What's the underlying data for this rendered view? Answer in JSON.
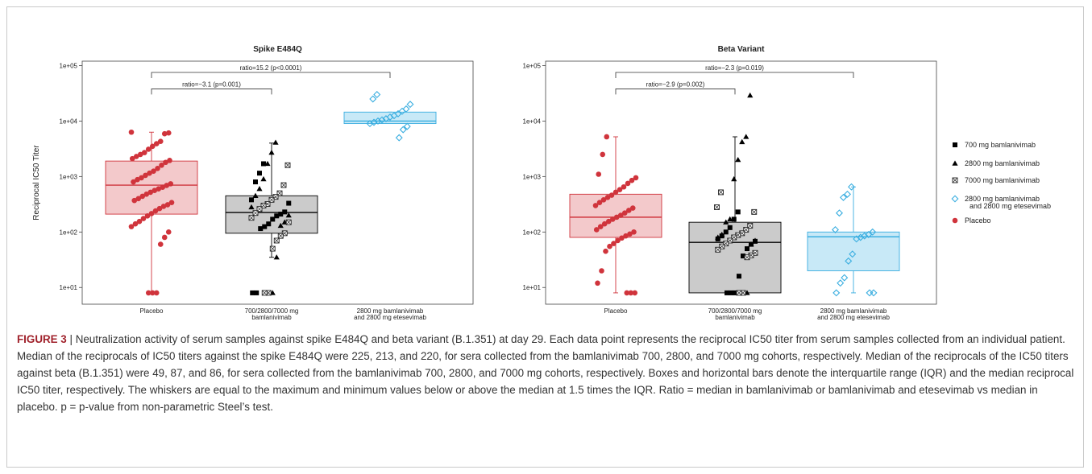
{
  "colors": {
    "placebo": "#d0343c",
    "placebo_fill": "#f3c9cb",
    "bam": "#000000",
    "bam_fill": "#cbcbcb",
    "combo": "#3aaee0",
    "combo_fill": "#c8e9f7",
    "caption_label": "#a0212b"
  },
  "chart_data": [
    {
      "type": "box",
      "title": "Spike E484Q",
      "xlabel": "",
      "ylabel": "Reciprocal IC50 Titer",
      "yscale": "log",
      "ylim": [
        5,
        120000
      ],
      "yticks": [
        "1e+01",
        "1e+02",
        "1e+03",
        "1e+04",
        "1e+05"
      ],
      "categories": [
        "Placebo",
        "700/2800/7000 mg bamlanivimab",
        "2800 mg bamlanivimab and 2800 mg etesevimab"
      ],
      "category_lines": [
        [
          "Placebo"
        ],
        [
          "700/2800/7000 mg",
          "bamlanivimab"
        ],
        [
          "2800 mg bamlanivimab",
          "and 2800 mg etesevimab"
        ]
      ],
      "boxes": [
        {
          "q1": 210,
          "median": 700,
          "q3": 1900,
          "whisker_low": 8,
          "whisker_high": 6300
        },
        {
          "q1": 95,
          "median": 225,
          "q3": 450,
          "whisker_low": 35,
          "whisker_high": 4000
        },
        {
          "q1": 9000,
          "median": 10000,
          "q3": 14500,
          "whisker_low": 9000,
          "whisker_high": 14500
        }
      ],
      "comparisons": [
        {
          "label": "ratio=−3.1 (p=0.001)",
          "from": 0,
          "to": 1,
          "y": 38000
        },
        {
          "label": "ratio=15.2 (p<0.0001)",
          "from": 0,
          "to": 2,
          "y": 160000
        }
      ],
      "points": [
        {
          "group": 0,
          "marker": "placebo",
          "values": [
            6300,
            6100,
            5900,
            4300,
            3900,
            3500,
            3100,
            2700,
            2500,
            2300,
            2100,
            1950,
            1800,
            1600,
            1400,
            1250,
            1150,
            1050,
            950,
            880,
            800,
            740,
            690,
            640,
            600,
            560,
            520,
            480,
            440,
            400,
            370,
            340,
            310,
            290,
            265,
            240,
            215,
            195,
            175,
            155,
            140,
            125,
            100,
            80,
            60,
            8,
            8,
            8
          ]
        },
        {
          "group": 1,
          "marker": "bam700",
          "values": [
            1700,
            1150,
            800,
            380,
            330,
            230,
            210,
            195,
            170,
            140,
            125,
            115,
            8,
            8
          ]
        },
        {
          "group": 1,
          "marker": "bam2800",
          "values": [
            4100,
            2700,
            1700,
            900,
            600,
            450,
            280,
            200,
            150,
            130,
            35,
            8
          ]
        },
        {
          "group": 1,
          "marker": "bam7000",
          "values": [
            1600,
            700,
            500,
            430,
            380,
            320,
            300,
            260,
            220,
            180,
            150,
            95,
            85,
            70,
            50,
            8,
            8
          ]
        },
        {
          "group": 2,
          "marker": "combo",
          "values": [
            30000,
            25000,
            20000,
            16500,
            15000,
            13500,
            12500,
            11800,
            11000,
            10500,
            10000,
            9500,
            9000,
            8000,
            7000,
            5000
          ]
        }
      ]
    },
    {
      "type": "box",
      "title": "Beta Variant",
      "xlabel": "",
      "ylabel": "",
      "yscale": "log",
      "ylim": [
        5,
        120000
      ],
      "yticks": [
        "1e+01",
        "1e+02",
        "1e+03",
        "1e+04",
        "1e+05"
      ],
      "categories": [
        "Placebo",
        "700/2800/7000 mg bamlanivimab",
        "2800 mg bamlanivimab and 2800 mg etesevimab"
      ],
      "category_lines": [
        [
          "Placebo"
        ],
        [
          "700/2800/7000 mg",
          "bamlanivimab"
        ],
        [
          "2800 mg bamlanivimab",
          "and 2800 mg etesevimab"
        ]
      ],
      "boxes": [
        {
          "q1": 80,
          "median": 185,
          "q3": 480,
          "whisker_low": 8,
          "whisker_high": 5200
        },
        {
          "q1": 8,
          "median": 65,
          "q3": 150,
          "whisker_low": 8,
          "whisker_high": 5200
        },
        {
          "q1": 20,
          "median": 82,
          "q3": 100,
          "whisker_low": 8,
          "whisker_high": 650
        }
      ],
      "comparisons": [
        {
          "label": "ratio=−2.9 (p=0.002)",
          "from": 0,
          "to": 1,
          "y": 38000
        },
        {
          "label": "ratio=−2.3 (p=0.019)",
          "from": 0,
          "to": 2,
          "y": 160000
        }
      ],
      "points": [
        {
          "group": 0,
          "marker": "placebo",
          "values": [
            5200,
            2500,
            1100,
            950,
            850,
            750,
            650,
            580,
            520,
            460,
            420,
            380,
            340,
            300,
            270,
            245,
            220,
            200,
            185,
            170,
            155,
            140,
            125,
            110,
            100,
            92,
            85,
            78,
            70,
            62,
            55,
            45,
            20,
            12,
            8,
            8,
            8
          ]
        },
        {
          "group": 1,
          "marker": "bam700",
          "values": [
            230,
            170,
            120,
            100,
            85,
            75,
            68,
            60,
            50,
            37,
            16,
            8,
            8,
            8
          ]
        },
        {
          "group": 1,
          "marker": "bam2800",
          "values": [
            29000,
            5200,
            4200,
            2000,
            900,
            170,
            150,
            90,
            80,
            70,
            60,
            8
          ]
        },
        {
          "group": 1,
          "marker": "bam7000",
          "values": [
            520,
            280,
            230,
            130,
            110,
            95,
            88,
            80,
            70,
            62,
            55,
            48,
            42,
            38,
            35,
            8,
            8
          ]
        },
        {
          "group": 2,
          "marker": "combo",
          "values": [
            650,
            480,
            420,
            220,
            110,
            100,
            90,
            85,
            80,
            75,
            40,
            30,
            15,
            12,
            8,
            8,
            8
          ]
        }
      ]
    }
  ],
  "legend": [
    {
      "marker": "bam700",
      "label": "700 mg bamlanivimab"
    },
    {
      "marker": "bam2800",
      "label": "2800 mg bamlanivimab"
    },
    {
      "marker": "bam7000",
      "label": "7000 mg bamlanivimab"
    },
    {
      "marker": "combo",
      "label": "2800 mg bamlanivimab",
      "label2": "and 2800 mg etesevimab"
    },
    {
      "marker": "placebo",
      "label": "Placebo"
    }
  ],
  "caption": {
    "label": "FIGURE 3",
    "separator": " | ",
    "text": "Neutralization activity of serum samples against spike E484Q and beta variant (B.1.351) at day 29. Each data point represents the reciprocal IC50 titer from serum samples collected from an individual patient. Median of the reciprocals of IC50 titers against the spike E484Q were 225, 213, and 220, for sera collected from the bamlanivimab 700, 2800, and 7000 mg cohorts, respectively. Median of the reciprocals of the IC50 titers against beta (B.1.351) were 49, 87, and 86, for sera collected from the bamlanivimab 700, 2800, and 7000 mg cohorts, respectively. Boxes and horizontal bars denote the interquartile range (IQR) and the median reciprocal IC50 titer, respectively. The whiskers are equal to the maximum and minimum values below or above the median at 1.5 times the IQR. Ratio = median in bamlanivimab or bamlanivimab and etesevimab vs median in placebo. p = p-value from non-parametric Steel’s test."
  }
}
